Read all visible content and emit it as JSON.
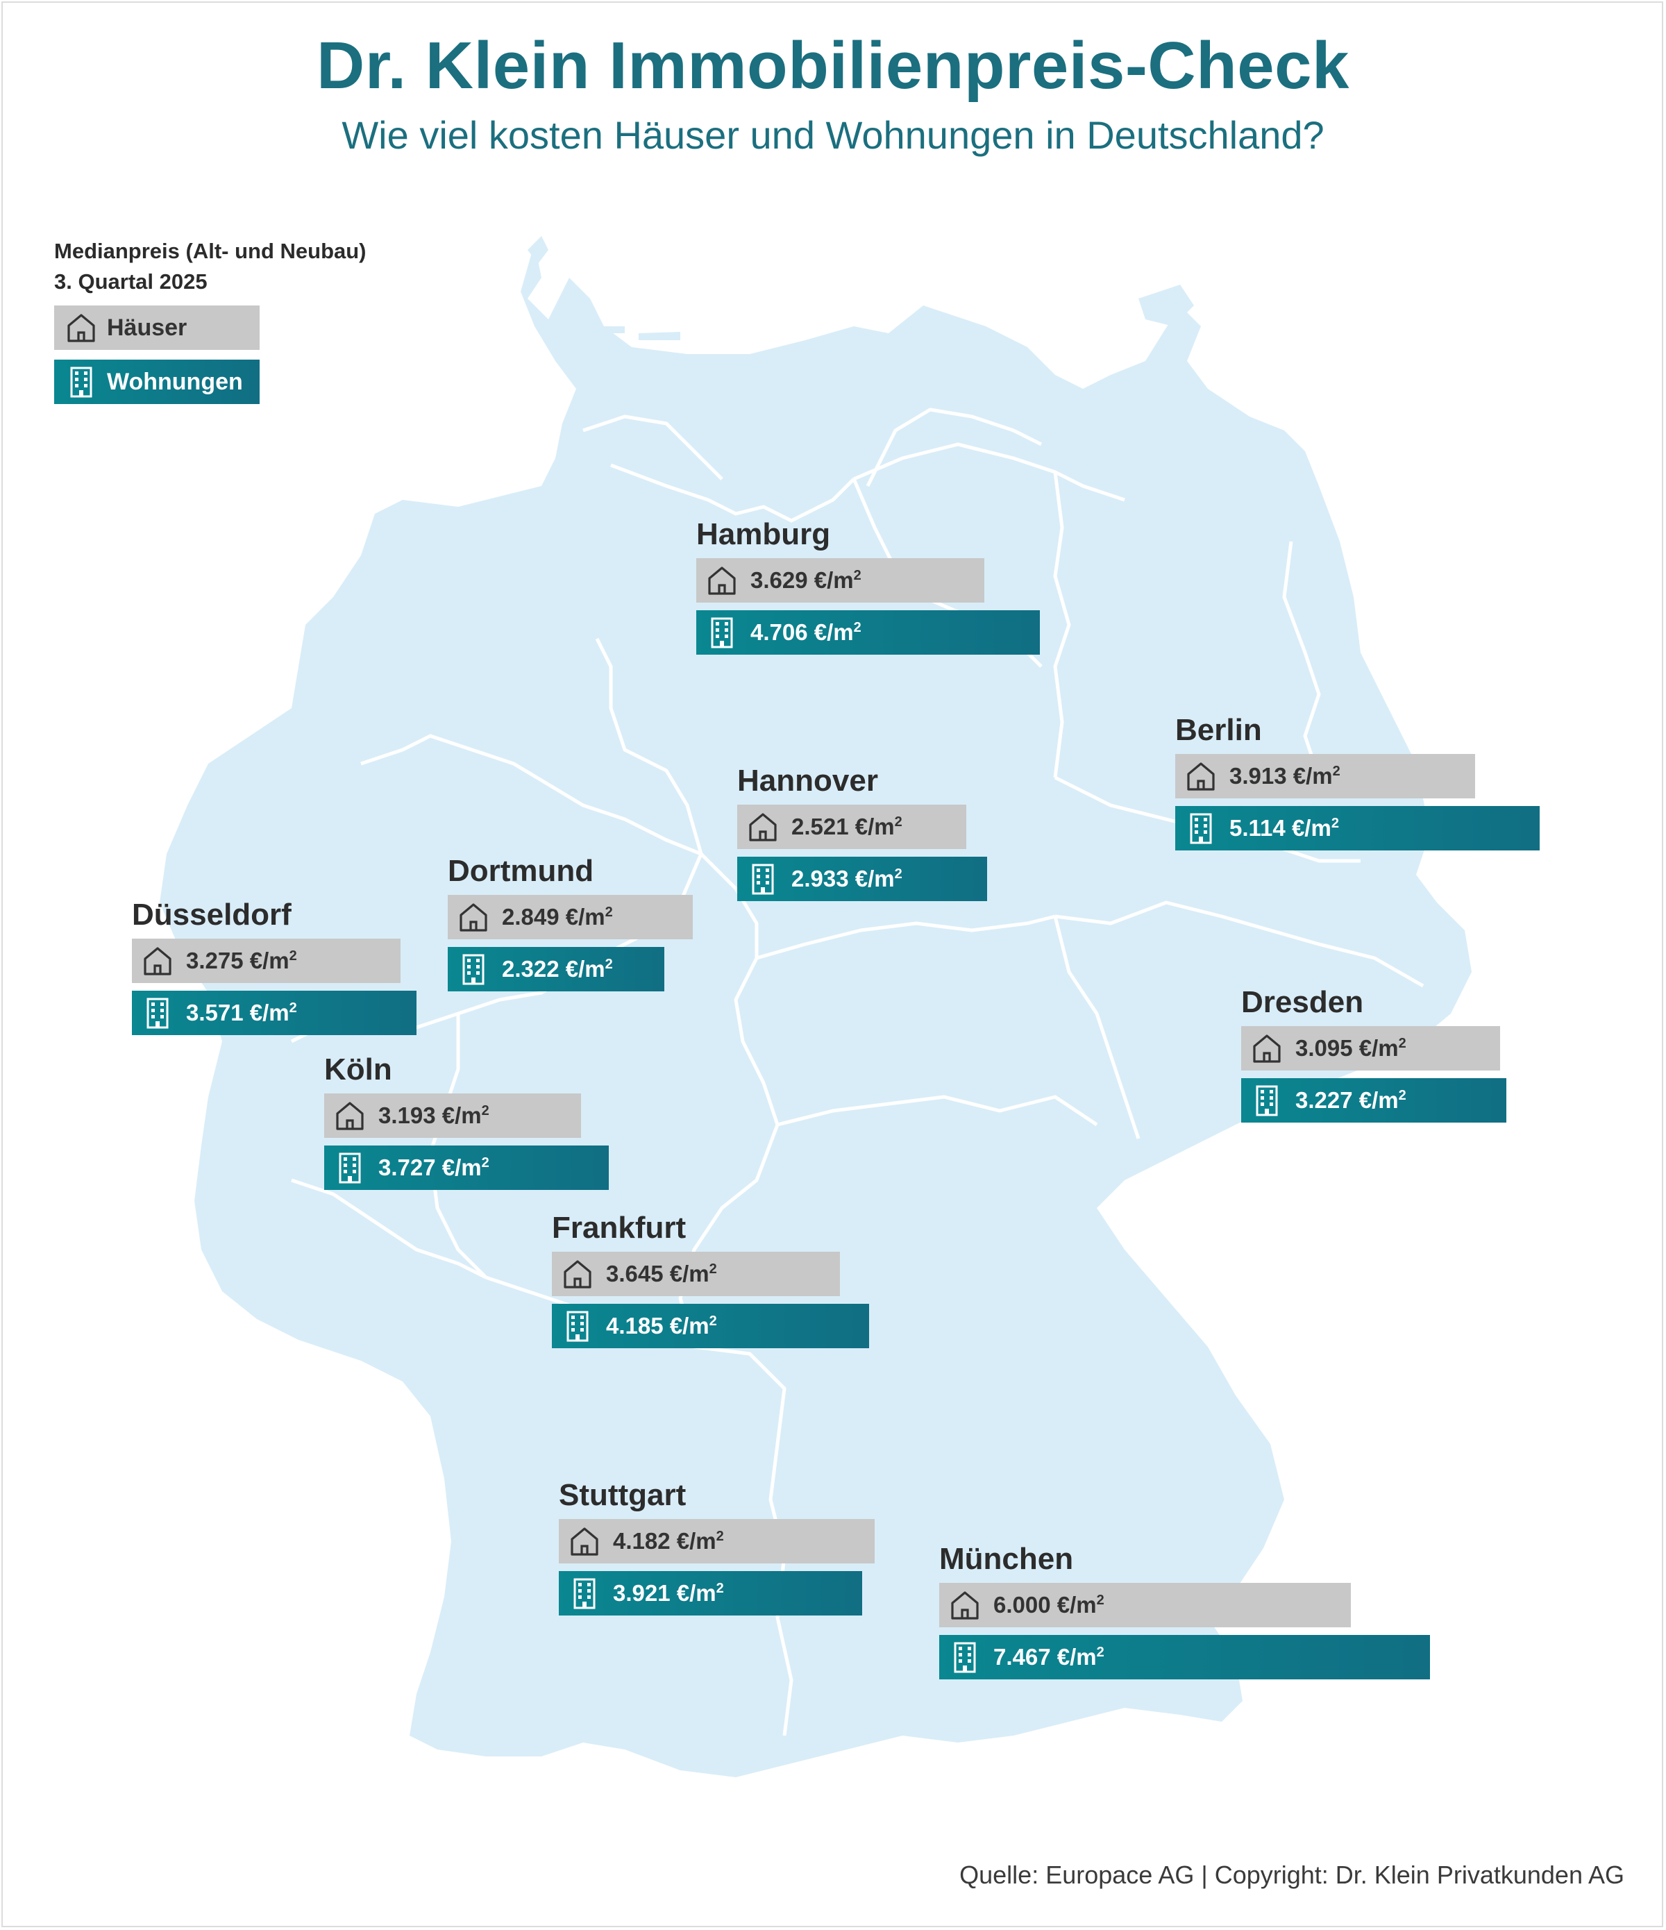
{
  "title": "Dr. Klein Immobilienpreis-Check",
  "subtitle": "Wie viel kosten Häuser und Wohnungen in Deutschland?",
  "legend": {
    "caption_line1": "Medianpreis  (Alt- und Neubau)",
    "caption_line2": "3. Quartal 2025",
    "houses_label": "Häuser",
    "flats_label": "Wohnungen",
    "houses_icon": "house-icon",
    "flats_icon": "apartment-building-icon"
  },
  "colors": {
    "title": "#1b6f7f",
    "map_fill": "#d9edf8",
    "border": "#ffffff",
    "houses_bar": "#c8c8c8",
    "flats_bar_start": "#0a8791",
    "flats_bar_end": "#116e83"
  },
  "unit": "€/m",
  "cities": [
    {
      "name": "Hamburg",
      "houses": "3.629",
      "flats": "4.706",
      "houses_value": 3629,
      "flats_value": 4706
    },
    {
      "name": "Berlin",
      "houses": "3.913",
      "flats": "5.114",
      "houses_value": 3913,
      "flats_value": 5114
    },
    {
      "name": "Hannover",
      "houses": "2.521",
      "flats": "2.933",
      "houses_value": 2521,
      "flats_value": 2933
    },
    {
      "name": "Dortmund",
      "houses": "2.849",
      "flats": "2.322",
      "houses_value": 2849,
      "flats_value": 2322
    },
    {
      "name": "Düsseldorf",
      "houses": "3.275",
      "flats": "3.571",
      "houses_value": 3275,
      "flats_value": 3571
    },
    {
      "name": "Dresden",
      "houses": "3.095",
      "flats": "3.227",
      "houses_value": 3095,
      "flats_value": 3227
    },
    {
      "name": "Köln",
      "houses": "3.193",
      "flats": "3.727",
      "houses_value": 3193,
      "flats_value": 3727
    },
    {
      "name": "Frankfurt",
      "houses": "3.645",
      "flats": "4.185",
      "houses_value": 3645,
      "flats_value": 4185
    },
    {
      "name": "Stuttgart",
      "houses": "4.182",
      "flats": "3.921",
      "houses_value": 4182,
      "flats_value": 3921
    },
    {
      "name": "München",
      "houses": "6.000",
      "flats": "7.467",
      "houses_value": 6000,
      "flats_value": 7467
    }
  ],
  "source": "Quelle: Europace AG | Copyright: Dr. Klein Privatkunden AG"
}
